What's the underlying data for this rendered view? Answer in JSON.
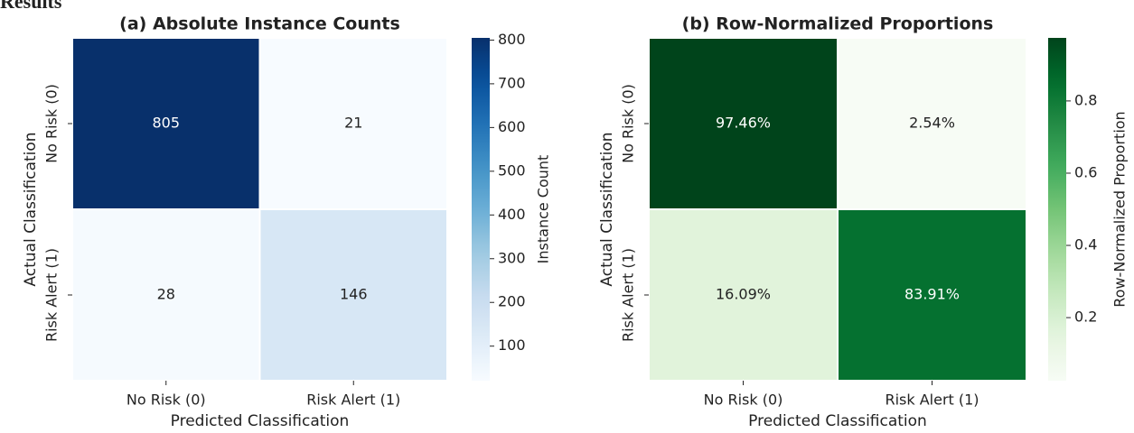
{
  "heading": "Results",
  "chart_data": [
    {
      "type": "heatmap",
      "title": "(a) Absolute Instance Counts",
      "columns": [
        "No Risk (0)",
        "Risk Alert (1)"
      ],
      "rows": [
        "No Risk (0)",
        "Risk Alert (1)"
      ],
      "values": [
        [
          805,
          21
        ],
        [
          28,
          146
        ]
      ],
      "xlabel": "Predicted Classification",
      "ylabel": "Actual Classification",
      "colorbar_label": "Instance Count",
      "colormap": "Blues",
      "clim": [
        21,
        805
      ],
      "cticks": [
        100,
        200,
        300,
        400,
        500,
        600,
        700,
        800
      ]
    },
    {
      "type": "heatmap",
      "title": "(b) Row-Normalized Proportions",
      "columns": [
        "No Risk (0)",
        "Risk Alert (1)"
      ],
      "rows": [
        "No Risk (0)",
        "Risk Alert (1)"
      ],
      "values": [
        [
          0.9746,
          0.0254
        ],
        [
          0.1609,
          0.8391
        ]
      ],
      "value_labels": [
        [
          "97.46%",
          "2.54%"
        ],
        [
          "16.09%",
          "83.91%"
        ]
      ],
      "xlabel": "Predicted Classification",
      "ylabel": "Actual Classification",
      "colorbar_label": "Row-Normalized Proportion",
      "colormap": "Greens",
      "clim": [
        0.0254,
        0.9746
      ],
      "cticks": [
        0.2,
        0.4,
        0.6,
        0.8
      ]
    }
  ]
}
